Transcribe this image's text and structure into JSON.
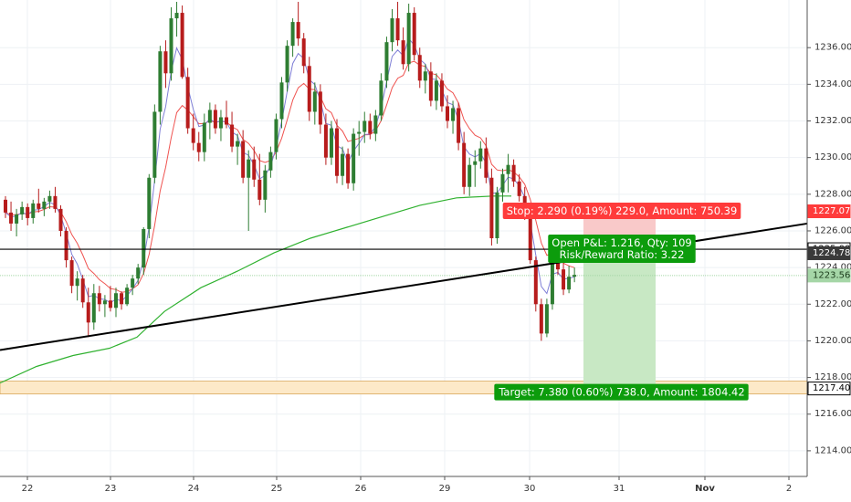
{
  "chart_data": {
    "type": "candlestick",
    "y_axis": {
      "range": [
        1212.6,
        1238.6
      ],
      "ticks": [
        "1214.000",
        "1216.000",
        "1218.000",
        "1220.000",
        "1222.000",
        "1224.000",
        "1226.000",
        "1228.000",
        "1230.000",
        "1232.000",
        "1234.000",
        "1236.000"
      ],
      "position": "right"
    },
    "x_axis": {
      "ticks": [
        "22",
        "23",
        "24",
        "25",
        "26",
        "29",
        "30",
        "31",
        "Nov",
        "2"
      ]
    },
    "grid": true,
    "price_tags": [
      {
        "label": "1227.070",
        "value": 1227.07,
        "bg": "#ff3b3b",
        "fg": "#ffffff"
      },
      {
        "label": "1225.000",
        "value": 1225.0,
        "bg": "#ffffff",
        "fg": "#000000",
        "border": "#000000"
      },
      {
        "label": "1224.780",
        "value": 1224.78,
        "bg": "#3a3a3a",
        "fg": "#ffffff"
      },
      {
        "label": "1223.564",
        "value": 1223.564,
        "bg": "#a5d6a7",
        "fg": "#1b3b1b"
      },
      {
        "label": "1217.400",
        "value": 1217.4,
        "bg": "#ffffff",
        "fg": "#000000",
        "border": "#000000"
      }
    ],
    "horizontal_line": {
      "value": 1225.0,
      "color": "#000000"
    },
    "current_price_line": {
      "value": 1223.564,
      "color": "#a5d6a7"
    },
    "support_zone": {
      "from": 1217.1,
      "to": 1217.8,
      "fill": "#fde9c8"
    },
    "trendline": {
      "from": {
        "x": "22 (pre-open)",
        "y": 1219.5
      },
      "to": {
        "x": "Nov 2",
        "y": 1226.4
      },
      "color": "#000000"
    },
    "position_tool": {
      "entry": 1224.78,
      "stop": 1227.07,
      "target": 1217.4,
      "stop_label": "Stop: 2.290 (0.19%) 229.0, Amount: 750.39",
      "pnl_label": "Open P&L: 1.216, Qty: 109",
      "rr_label": "Risk/Reward Ratio: 3.22",
      "target_label": "Target: 7.380 (0.60%) 738.0, Amount: 1804.42",
      "stop_color": "#ff3b3b",
      "target_color": "#0c9c0c",
      "stop_fill": "#f9c9c9",
      "target_fill": "#c8e8c4"
    },
    "moving_averages": [
      {
        "color": "#7f7fd6",
        "kind": "fast"
      },
      {
        "color": "#ef5350",
        "kind": "medium"
      },
      {
        "color": "#2fb12f",
        "kind": "slow"
      }
    ],
    "candle_colors": {
      "up": "#2e7d32",
      "down": "#b71c1c"
    },
    "candles": [
      [
        1227.7,
        1227.9,
        1226.7,
        1227.0
      ],
      [
        1227.0,
        1227.6,
        1226.0,
        1226.4
      ],
      [
        1226.4,
        1227.2,
        1225.7,
        1226.9
      ],
      [
        1226.9,
        1227.6,
        1226.6,
        1227.3
      ],
      [
        1227.3,
        1227.5,
        1226.3,
        1226.7
      ],
      [
        1226.7,
        1227.7,
        1226.4,
        1227.5
      ],
      [
        1227.5,
        1228.3,
        1227.0,
        1227.2
      ],
      [
        1227.2,
        1227.8,
        1226.8,
        1227.6
      ],
      [
        1227.6,
        1228.2,
        1227.2,
        1227.9
      ],
      [
        1227.9,
        1228.4,
        1227.0,
        1227.2
      ],
      [
        1227.2,
        1227.4,
        1225.7,
        1226.0
      ],
      [
        1226.0,
        1226.2,
        1224.0,
        1224.4
      ],
      [
        1224.4,
        1224.6,
        1222.6,
        1223.0
      ],
      [
        1223.0,
        1223.8,
        1222.2,
        1223.4
      ],
      [
        1223.4,
        1223.6,
        1221.8,
        1222.1
      ],
      [
        1222.1,
        1222.9,
        1220.2,
        1221.0
      ],
      [
        1221.0,
        1223.1,
        1220.6,
        1222.6
      ],
      [
        1222.6,
        1223.0,
        1221.6,
        1222.0
      ],
      [
        1222.0,
        1222.5,
        1221.3,
        1222.2
      ],
      [
        1222.2,
        1223.0,
        1221.6,
        1221.8
      ],
      [
        1221.8,
        1222.9,
        1221.3,
        1222.6
      ],
      [
        1222.6,
        1222.7,
        1221.7,
        1222.0
      ],
      [
        1222.0,
        1223.1,
        1221.9,
        1222.9
      ],
      [
        1222.9,
        1223.6,
        1222.5,
        1223.4
      ],
      [
        1223.4,
        1224.2,
        1223.1,
        1224.0
      ],
      [
        1224.0,
        1226.2,
        1223.6,
        1226.1
      ],
      [
        1226.1,
        1229.1,
        1225.6,
        1228.9
      ],
      [
        1228.9,
        1232.9,
        1228.6,
        1232.5
      ],
      [
        1232.5,
        1236.1,
        1231.8,
        1235.8
      ],
      [
        1235.8,
        1236.4,
        1233.8,
        1234.6
      ],
      [
        1234.6,
        1238.2,
        1234.2,
        1237.6
      ],
      [
        1237.6,
        1238.5,
        1236.6,
        1237.9
      ],
      [
        1237.9,
        1238.3,
        1234.3,
        1234.4
      ],
      [
        1234.4,
        1234.9,
        1231.3,
        1231.6
      ],
      [
        1231.6,
        1232.4,
        1230.4,
        1230.8
      ],
      [
        1230.8,
        1231.4,
        1229.8,
        1230.3
      ],
      [
        1230.3,
        1232.4,
        1229.8,
        1231.9
      ],
      [
        1231.9,
        1233.0,
        1231.0,
        1232.6
      ],
      [
        1232.6,
        1232.9,
        1231.3,
        1231.6
      ],
      [
        1231.6,
        1232.6,
        1230.9,
        1232.2
      ],
      [
        1232.2,
        1233.1,
        1231.6,
        1231.8
      ],
      [
        1231.8,
        1232.5,
        1230.3,
        1230.6
      ],
      [
        1230.6,
        1231.3,
        1229.6,
        1230.9
      ],
      [
        1230.9,
        1231.5,
        1228.6,
        1228.9
      ],
      [
        1228.9,
        1230.4,
        1226.0,
        1229.9
      ],
      [
        1229.9,
        1230.6,
        1228.4,
        1228.8
      ],
      [
        1228.8,
        1230.2,
        1227.4,
        1227.7
      ],
      [
        1227.7,
        1229.6,
        1227.0,
        1229.3
      ],
      [
        1229.3,
        1230.6,
        1228.9,
        1230.3
      ],
      [
        1230.3,
        1232.4,
        1229.9,
        1232.1
      ],
      [
        1232.1,
        1234.4,
        1231.6,
        1234.1
      ],
      [
        1234.1,
        1236.4,
        1233.6,
        1236.1
      ],
      [
        1236.1,
        1237.6,
        1235.5,
        1237.4
      ],
      [
        1237.4,
        1238.5,
        1236.1,
        1236.5
      ],
      [
        1236.5,
        1236.8,
        1234.6,
        1235.0
      ],
      [
        1235.0,
        1235.5,
        1232.0,
        1232.5
      ],
      [
        1232.5,
        1234.1,
        1231.8,
        1233.6
      ],
      [
        1233.6,
        1234.0,
        1231.3,
        1231.8
      ],
      [
        1231.8,
        1232.4,
        1229.6,
        1230.0
      ],
      [
        1230.0,
        1232.0,
        1229.6,
        1231.6
      ],
      [
        1231.6,
        1232.1,
        1228.6,
        1229.0
      ],
      [
        1229.0,
        1230.6,
        1228.5,
        1230.2
      ],
      [
        1230.2,
        1230.5,
        1228.3,
        1228.6
      ],
      [
        1228.6,
        1231.6,
        1228.2,
        1231.3
      ],
      [
        1231.3,
        1232.0,
        1230.1,
        1231.4
      ],
      [
        1231.4,
        1232.5,
        1230.8,
        1232.0
      ],
      [
        1232.0,
        1232.4,
        1231.0,
        1231.3
      ],
      [
        1231.3,
        1232.6,
        1230.9,
        1232.3
      ],
      [
        1232.3,
        1234.6,
        1232.0,
        1234.2
      ],
      [
        1234.2,
        1236.6,
        1233.8,
        1236.3
      ],
      [
        1236.3,
        1238.1,
        1235.8,
        1237.6
      ],
      [
        1237.6,
        1238.5,
        1236.1,
        1236.4
      ],
      [
        1236.4,
        1237.1,
        1234.8,
        1235.1
      ],
      [
        1235.1,
        1238.4,
        1234.7,
        1237.9
      ],
      [
        1237.9,
        1238.2,
        1235.3,
        1235.6
      ],
      [
        1235.6,
        1236.0,
        1233.8,
        1234.2
      ],
      [
        1234.2,
        1235.1,
        1233.5,
        1234.7
      ],
      [
        1234.7,
        1235.2,
        1232.8,
        1233.1
      ],
      [
        1233.1,
        1234.6,
        1232.6,
        1234.2
      ],
      [
        1234.2,
        1234.6,
        1232.5,
        1232.8
      ],
      [
        1232.8,
        1233.4,
        1231.6,
        1232.0
      ],
      [
        1232.0,
        1233.1,
        1231.3,
        1232.7
      ],
      [
        1232.7,
        1233.0,
        1230.4,
        1230.8
      ],
      [
        1230.8,
        1231.4,
        1228.0,
        1228.4
      ],
      [
        1228.4,
        1230.0,
        1227.9,
        1229.6
      ],
      [
        1229.6,
        1230.4,
        1228.4,
        1229.8
      ],
      [
        1229.8,
        1230.9,
        1229.4,
        1230.5
      ],
      [
        1230.5,
        1231.1,
        1228.6,
        1228.9
      ],
      [
        1228.9,
        1229.4,
        1225.2,
        1225.6
      ],
      [
        1225.6,
        1228.4,
        1225.3,
        1228.1
      ],
      [
        1228.1,
        1229.4,
        1227.6,
        1229.1
      ],
      [
        1229.1,
        1230.2,
        1228.1,
        1229.6
      ],
      [
        1229.6,
        1229.9,
        1228.4,
        1228.7
      ],
      [
        1228.7,
        1229.1,
        1227.6,
        1227.9
      ],
      [
        1227.9,
        1228.4,
        1226.6,
        1226.9
      ],
      [
        1226.9,
        1227.3,
        1224.2,
        1224.4
      ],
      [
        1224.4,
        1224.6,
        1221.6,
        1222.0
      ],
      [
        1222.0,
        1222.3,
        1220.0,
        1220.4
      ],
      [
        1220.4,
        1222.3,
        1220.2,
        1222.0
      ],
      [
        1222.0,
        1225.6,
        1221.7,
        1225.2
      ],
      [
        1225.2,
        1225.5,
        1223.6,
        1223.9
      ],
      [
        1223.9,
        1224.3,
        1222.5,
        1222.8
      ],
      [
        1222.8,
        1224.1,
        1222.6,
        1223.5
      ],
      [
        1223.5,
        1224.0,
        1223.2,
        1223.6
      ]
    ]
  }
}
